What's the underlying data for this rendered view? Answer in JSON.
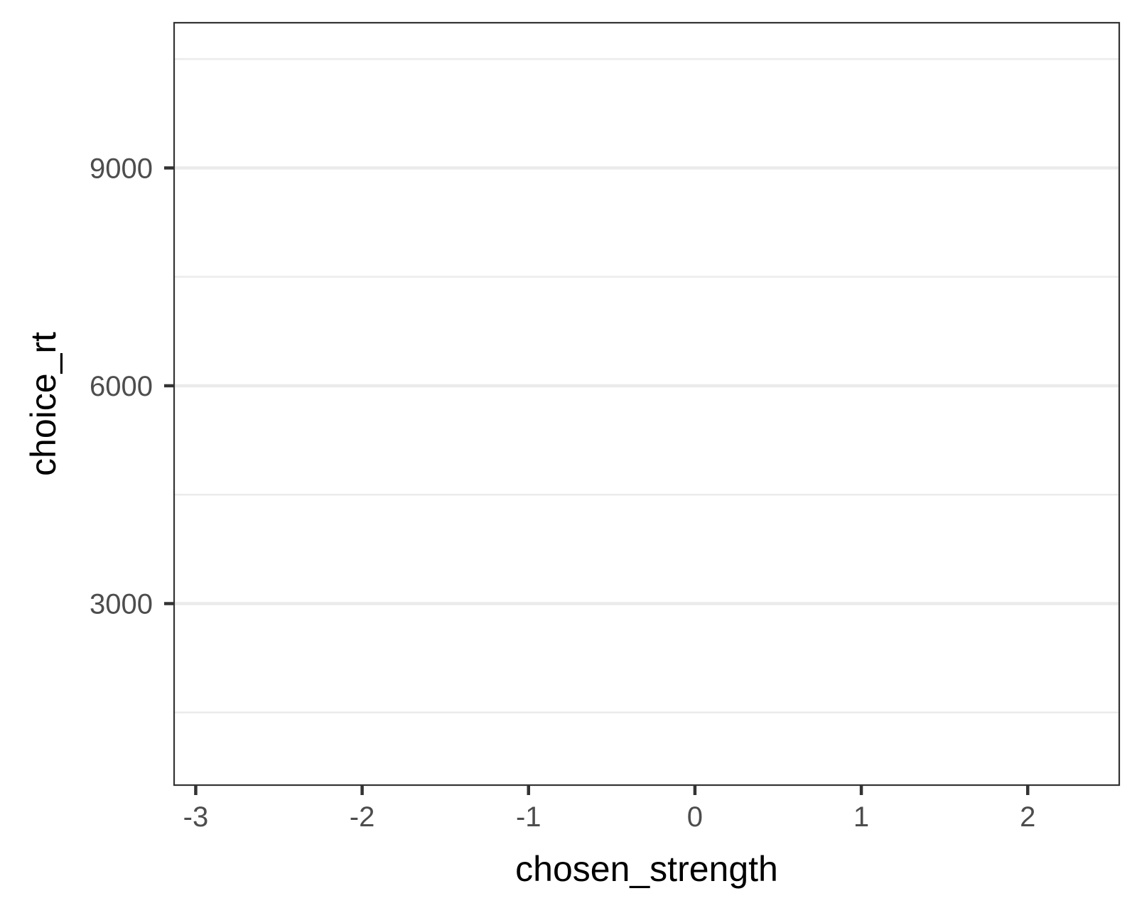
{
  "chart_data": {
    "type": "scatter",
    "title": "",
    "xlabel": "chosen_strength",
    "ylabel": "choice_rt",
    "xlim": [
      -3.13,
      2.55
    ],
    "ylim": [
      500,
      11000
    ],
    "x_ticks": [
      -3,
      -2,
      -1,
      0,
      1,
      2
    ],
    "x_tick_labels": [
      "-3",
      "-2",
      "-1",
      "0",
      "1",
      "2"
    ],
    "y_ticks": [
      3000,
      6000,
      9000
    ],
    "y_tick_labels": [
      "3000",
      "6000",
      "9000"
    ],
    "y_minor_gridlines": [
      1500,
      4500,
      7500,
      10500
    ],
    "grid": "horizontal major and minor gridlines only",
    "series": [],
    "legend": "none",
    "colors": {
      "background": "#ffffff",
      "panel_border": "#333333",
      "major_grid": "#ebebeb",
      "minor_grid": "#ebebeb",
      "tick_mark": "#333333",
      "tick_label": "#4d4d4d",
      "axis_title": "#000000"
    }
  }
}
